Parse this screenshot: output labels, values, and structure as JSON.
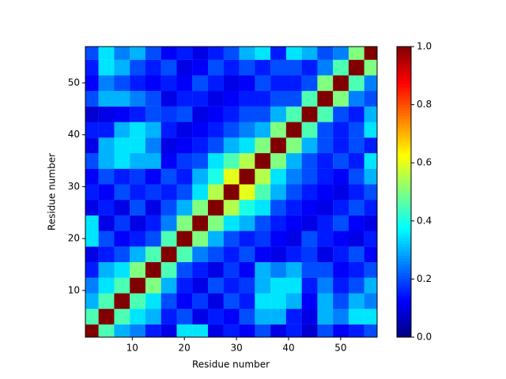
{
  "chart_data": {
    "type": "heatmap",
    "xlabel": "Residue number",
    "ylabel": "Residue number",
    "x": [
      2,
      5,
      8,
      11,
      14,
      17,
      20,
      23,
      26,
      29,
      32,
      35,
      38,
      41,
      44,
      47,
      50,
      53,
      56
    ],
    "y": [
      2,
      5,
      8,
      11,
      14,
      17,
      20,
      23,
      26,
      29,
      32,
      35,
      38,
      41,
      44,
      47,
      50,
      53,
      56
    ],
    "z": [
      [
        1,
        0.45,
        0.3,
        0.25,
        0.15,
        0.1,
        0.35,
        0.35,
        0.1,
        0.15,
        0.12,
        0.2,
        0.1,
        0.15,
        0.08,
        0.2,
        0.12,
        0.15,
        0.2
      ],
      [
        0.45,
        1,
        0.45,
        0.35,
        0.3,
        0.15,
        0.2,
        0.1,
        0.15,
        0.12,
        0.2,
        0.3,
        0.3,
        0.15,
        0.1,
        0.3,
        0.25,
        0.35,
        0.35
      ],
      [
        0.3,
        0.45,
        1,
        0.45,
        0.35,
        0.2,
        0.12,
        0.18,
        0.1,
        0.2,
        0.15,
        0.35,
        0.35,
        0.3,
        0.12,
        0.3,
        0.2,
        0.3,
        0.25
      ],
      [
        0.25,
        0.35,
        0.45,
        1,
        0.5,
        0.3,
        0.15,
        0.1,
        0.2,
        0.15,
        0.18,
        0.3,
        0.35,
        0.35,
        0.15,
        0.25,
        0.15,
        0.2,
        0.3
      ],
      [
        0.15,
        0.3,
        0.35,
        0.5,
        1,
        0.45,
        0.2,
        0.15,
        0.1,
        0.18,
        0.12,
        0.3,
        0.25,
        0.3,
        0.2,
        0.2,
        0.12,
        0.15,
        0.2
      ],
      [
        0.1,
        0.15,
        0.2,
        0.3,
        0.45,
        1,
        0.45,
        0.25,
        0.2,
        0.15,
        0.2,
        0.12,
        0.1,
        0.15,
        0.18,
        0.1,
        0.15,
        0.2,
        0.12
      ],
      [
        0.35,
        0.2,
        0.12,
        0.15,
        0.2,
        0.45,
        1,
        0.5,
        0.3,
        0.2,
        0.15,
        0.18,
        0.12,
        0.1,
        0.2,
        0.15,
        0.12,
        0.1,
        0.15
      ],
      [
        0.35,
        0.1,
        0.18,
        0.1,
        0.15,
        0.25,
        0.5,
        1,
        0.5,
        0.35,
        0.3,
        0.2,
        0.15,
        0.12,
        0.1,
        0.15,
        0.2,
        0.12,
        0.1
      ],
      [
        0.1,
        0.15,
        0.1,
        0.2,
        0.1,
        0.2,
        0.3,
        0.5,
        1,
        0.55,
        0.4,
        0.35,
        0.2,
        0.15,
        0.12,
        0.1,
        0.15,
        0.2,
        0.15
      ],
      [
        0.15,
        0.12,
        0.2,
        0.15,
        0.18,
        0.15,
        0.2,
        0.35,
        0.55,
        1,
        0.6,
        0.45,
        0.3,
        0.2,
        0.15,
        0.12,
        0.1,
        0.15,
        0.2
      ],
      [
        0.12,
        0.2,
        0.15,
        0.18,
        0.12,
        0.2,
        0.15,
        0.3,
        0.4,
        0.6,
        1,
        0.55,
        0.35,
        0.25,
        0.2,
        0.15,
        0.12,
        0.2,
        0.3
      ],
      [
        0.2,
        0.3,
        0.35,
        0.3,
        0.3,
        0.12,
        0.18,
        0.2,
        0.35,
        0.45,
        0.55,
        1,
        0.5,
        0.3,
        0.2,
        0.15,
        0.2,
        0.15,
        0.35
      ],
      [
        0.1,
        0.3,
        0.35,
        0.35,
        0.25,
        0.1,
        0.12,
        0.15,
        0.2,
        0.3,
        0.35,
        0.5,
        1,
        0.5,
        0.3,
        0.2,
        0.15,
        0.2,
        0.15
      ],
      [
        0.15,
        0.15,
        0.3,
        0.35,
        0.3,
        0.15,
        0.1,
        0.12,
        0.15,
        0.2,
        0.25,
        0.3,
        0.5,
        1,
        0.45,
        0.2,
        0.15,
        0.2,
        0.35
      ],
      [
        0.08,
        0.1,
        0.12,
        0.15,
        0.2,
        0.18,
        0.2,
        0.1,
        0.12,
        0.15,
        0.2,
        0.2,
        0.3,
        0.45,
        1,
        0.45,
        0.2,
        0.15,
        0.3
      ],
      [
        0.2,
        0.3,
        0.3,
        0.25,
        0.2,
        0.1,
        0.15,
        0.15,
        0.1,
        0.12,
        0.15,
        0.15,
        0.2,
        0.2,
        0.45,
        1,
        0.5,
        0.25,
        0.2
      ],
      [
        0.12,
        0.25,
        0.2,
        0.15,
        0.12,
        0.15,
        0.12,
        0.2,
        0.15,
        0.1,
        0.12,
        0.2,
        0.15,
        0.15,
        0.2,
        0.5,
        1,
        0.45,
        0.25
      ],
      [
        0.15,
        0.35,
        0.3,
        0.2,
        0.15,
        0.2,
        0.1,
        0.12,
        0.2,
        0.15,
        0.2,
        0.15,
        0.2,
        0.2,
        0.15,
        0.25,
        0.45,
        1,
        0.5
      ],
      [
        0.2,
        0.35,
        0.25,
        0.3,
        0.2,
        0.12,
        0.15,
        0.1,
        0.15,
        0.2,
        0.3,
        0.35,
        0.15,
        0.35,
        0.3,
        0.2,
        0.25,
        0.5,
        1
      ]
    ],
    "colormap": "jet",
    "xlim": [
      1,
      57
    ],
    "ylim": [
      1,
      57
    ],
    "xticks": [
      10,
      20,
      30,
      40,
      50
    ],
    "yticks": [
      10,
      20,
      30,
      40,
      50
    ],
    "clim": [
      0,
      1
    ],
    "cticks": [
      {
        "value": 0,
        "label": "0.0"
      },
      {
        "value": 0.2,
        "label": "0.2"
      },
      {
        "value": 0.4,
        "label": "0.4"
      },
      {
        "value": 0.6,
        "label": "0.6"
      },
      {
        "value": 0.8,
        "label": "0.8"
      },
      {
        "value": 1,
        "label": "1.0"
      }
    ]
  }
}
